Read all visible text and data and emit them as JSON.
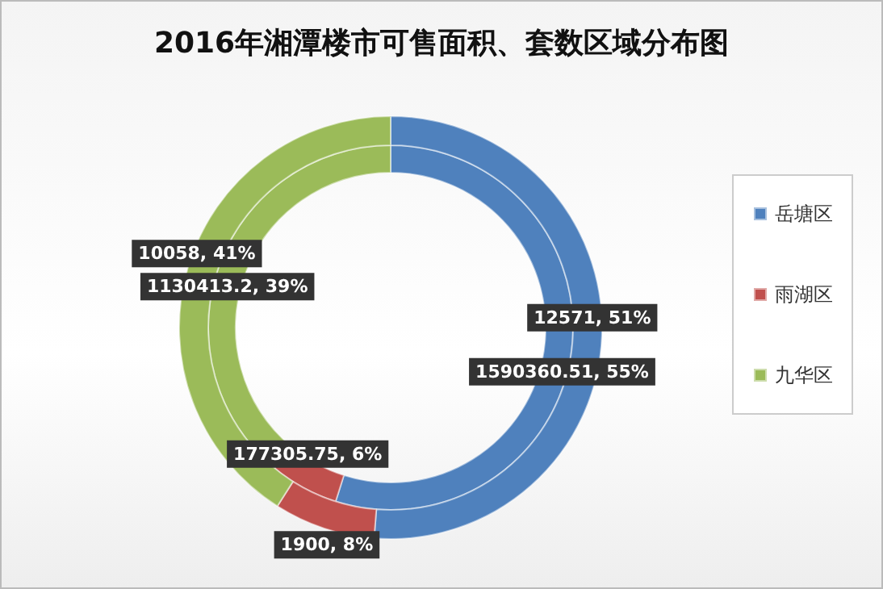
{
  "chart_data": {
    "type": "donut",
    "title": "2016年湘潭楼市可售面积、套数区域分布图",
    "categories": [
      "岳塘区",
      "雨湖区",
      "九华区"
    ],
    "colors": [
      "#4f81bd",
      "#c0504d",
      "#9bbb59"
    ],
    "series": [
      {
        "values": [
          1590360.51,
          177305.75,
          1130413.2
        ],
        "value_labels": [
          "1590360.51, 55%",
          "177305.75, 6%",
          "1130413.2, 39%"
        ]
      },
      {
        "values": [
          12571,
          1900,
          10058
        ],
        "value_labels": [
          "12571, 51%",
          "1900, 8%",
          "10058, 41%"
        ]
      }
    ],
    "legend": "right"
  }
}
